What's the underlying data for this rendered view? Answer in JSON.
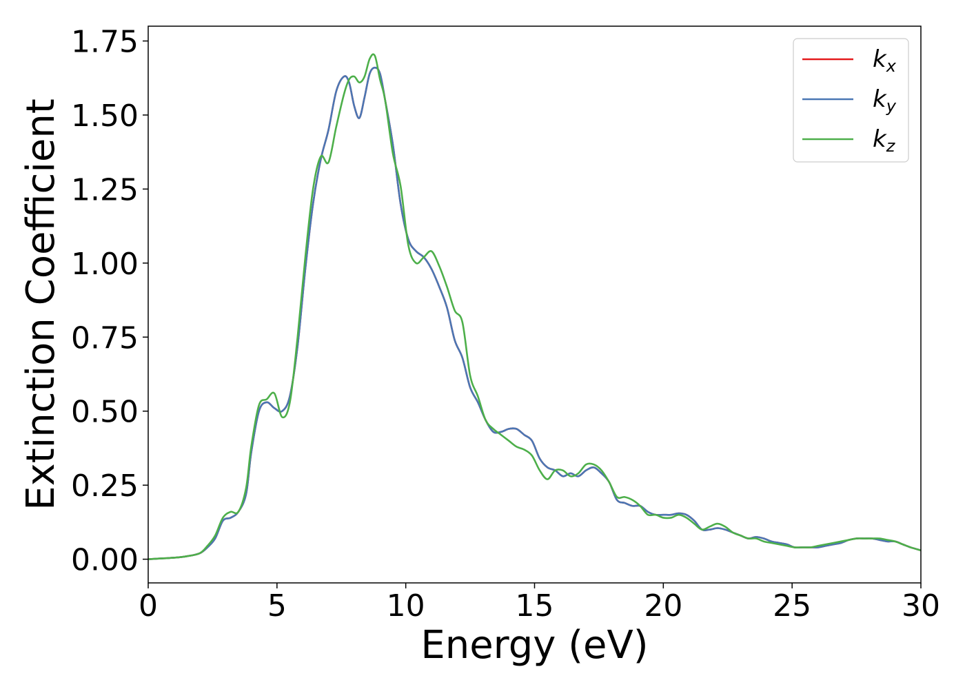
{
  "chart_data": {
    "type": "line",
    "xlabel": "Energy (eV)",
    "ylabel": "Extinction Coefficient",
    "xlim": [
      0,
      30
    ],
    "ylim": [
      -0.08,
      1.8
    ],
    "xticks": [
      0,
      5,
      10,
      15,
      20,
      25,
      30
    ],
    "xtick_labels": [
      "0",
      "5",
      "10",
      "15",
      "20",
      "25",
      "30"
    ],
    "yticks": [
      0.0,
      0.25,
      0.5,
      0.75,
      1.0,
      1.25,
      1.5,
      1.75
    ],
    "ytick_labels": [
      "0.00",
      "0.25",
      "0.50",
      "0.75",
      "1.00",
      "1.25",
      "1.50",
      "1.75"
    ],
    "grid": false,
    "legend_position": "top-right",
    "series": [
      {
        "name": "k_x",
        "label_base": "k",
        "label_sub": "x",
        "color": "#e41a1c",
        "x": [
          0,
          1,
          1.5,
          2,
          2.3,
          2.6,
          2.9,
          3.2,
          3.5,
          3.8,
          4.0,
          4.3,
          4.6,
          4.9,
          5.2,
          5.5,
          5.8,
          6.1,
          6.4,
          6.7,
          7.0,
          7.3,
          7.6,
          7.8,
          8.0,
          8.2,
          8.4,
          8.6,
          8.8,
          9.0,
          9.2,
          9.5,
          9.8,
          10.1,
          10.4,
          10.7,
          11.0,
          11.3,
          11.6,
          11.9,
          12.2,
          12.5,
          12.8,
          13.1,
          13.4,
          13.7,
          14.0,
          14.3,
          14.6,
          14.9,
          15.2,
          15.5,
          15.8,
          16.1,
          16.4,
          16.7,
          17.0,
          17.3,
          17.6,
          17.9,
          18.2,
          18.5,
          18.8,
          19.1,
          19.4,
          19.7,
          20.0,
          20.3,
          20.6,
          20.9,
          21.2,
          21.5,
          21.8,
          22.1,
          22.4,
          22.7,
          23.0,
          23.3,
          23.6,
          23.9,
          24.2,
          24.5,
          24.8,
          25.1,
          25.4,
          25.7,
          26.0,
          26.3,
          26.6,
          26.9,
          27.2,
          27.5,
          27.8,
          28.1,
          28.4,
          28.7,
          29.0,
          29.3,
          29.6,
          30.0
        ],
        "values": [
          0.0,
          0.005,
          0.01,
          0.02,
          0.04,
          0.07,
          0.13,
          0.14,
          0.16,
          0.22,
          0.36,
          0.5,
          0.53,
          0.51,
          0.5,
          0.55,
          0.72,
          0.98,
          1.2,
          1.35,
          1.45,
          1.58,
          1.63,
          1.61,
          1.53,
          1.49,
          1.56,
          1.64,
          1.66,
          1.64,
          1.55,
          1.4,
          1.2,
          1.08,
          1.04,
          1.02,
          0.98,
          0.92,
          0.85,
          0.74,
          0.68,
          0.58,
          0.53,
          0.47,
          0.43,
          0.43,
          0.44,
          0.44,
          0.42,
          0.4,
          0.34,
          0.31,
          0.3,
          0.28,
          0.29,
          0.28,
          0.3,
          0.31,
          0.29,
          0.26,
          0.2,
          0.19,
          0.18,
          0.18,
          0.16,
          0.15,
          0.15,
          0.15,
          0.155,
          0.15,
          0.13,
          0.1,
          0.1,
          0.105,
          0.1,
          0.09,
          0.08,
          0.07,
          0.075,
          0.07,
          0.06,
          0.055,
          0.05,
          0.04,
          0.04,
          0.04,
          0.04,
          0.045,
          0.05,
          0.055,
          0.065,
          0.07,
          0.07,
          0.07,
          0.065,
          0.06,
          0.06,
          0.05,
          0.04,
          0.03
        ]
      },
      {
        "name": "k_y",
        "label_base": "k",
        "label_sub": "y",
        "color": "#4a77b4",
        "x": [
          0,
          1,
          1.5,
          2,
          2.3,
          2.6,
          2.9,
          3.2,
          3.5,
          3.8,
          4.0,
          4.3,
          4.6,
          4.9,
          5.2,
          5.5,
          5.8,
          6.1,
          6.4,
          6.7,
          7.0,
          7.3,
          7.6,
          7.8,
          8.0,
          8.2,
          8.4,
          8.6,
          8.8,
          9.0,
          9.2,
          9.5,
          9.8,
          10.1,
          10.4,
          10.7,
          11.0,
          11.3,
          11.6,
          11.9,
          12.2,
          12.5,
          12.8,
          13.1,
          13.4,
          13.7,
          14.0,
          14.3,
          14.6,
          14.9,
          15.2,
          15.5,
          15.8,
          16.1,
          16.4,
          16.7,
          17.0,
          17.3,
          17.6,
          17.9,
          18.2,
          18.5,
          18.8,
          19.1,
          19.4,
          19.7,
          20.0,
          20.3,
          20.6,
          20.9,
          21.2,
          21.5,
          21.8,
          22.1,
          22.4,
          22.7,
          23.0,
          23.3,
          23.6,
          23.9,
          24.2,
          24.5,
          24.8,
          25.1,
          25.4,
          25.7,
          26.0,
          26.3,
          26.6,
          26.9,
          27.2,
          27.5,
          27.8,
          28.1,
          28.4,
          28.7,
          29.0,
          29.3,
          29.6,
          30.0
        ],
        "values": [
          0.0,
          0.005,
          0.01,
          0.02,
          0.04,
          0.07,
          0.13,
          0.14,
          0.16,
          0.22,
          0.36,
          0.5,
          0.53,
          0.51,
          0.5,
          0.55,
          0.72,
          0.98,
          1.2,
          1.35,
          1.45,
          1.58,
          1.63,
          1.61,
          1.53,
          1.49,
          1.56,
          1.64,
          1.66,
          1.64,
          1.55,
          1.4,
          1.2,
          1.08,
          1.04,
          1.02,
          0.98,
          0.92,
          0.85,
          0.74,
          0.68,
          0.58,
          0.53,
          0.47,
          0.43,
          0.43,
          0.44,
          0.44,
          0.42,
          0.4,
          0.34,
          0.31,
          0.3,
          0.28,
          0.29,
          0.28,
          0.3,
          0.31,
          0.29,
          0.26,
          0.2,
          0.19,
          0.18,
          0.18,
          0.16,
          0.15,
          0.15,
          0.15,
          0.155,
          0.15,
          0.13,
          0.1,
          0.1,
          0.105,
          0.1,
          0.09,
          0.08,
          0.07,
          0.075,
          0.07,
          0.06,
          0.055,
          0.05,
          0.04,
          0.04,
          0.04,
          0.04,
          0.045,
          0.05,
          0.055,
          0.065,
          0.07,
          0.07,
          0.07,
          0.065,
          0.06,
          0.06,
          0.05,
          0.04,
          0.03
        ]
      },
      {
        "name": "k_z",
        "label_base": "k",
        "label_sub": "z",
        "color": "#4daf4a",
        "x": [
          0,
          1,
          1.5,
          2,
          2.3,
          2.6,
          2.9,
          3.2,
          3.5,
          3.8,
          4.0,
          4.3,
          4.6,
          4.9,
          5.2,
          5.5,
          5.8,
          6.1,
          6.4,
          6.7,
          7.0,
          7.3,
          7.6,
          7.8,
          8.0,
          8.2,
          8.4,
          8.6,
          8.8,
          9.0,
          9.2,
          9.5,
          9.8,
          10.1,
          10.4,
          10.7,
          11.0,
          11.3,
          11.6,
          11.9,
          12.2,
          12.5,
          12.8,
          13.1,
          13.4,
          13.7,
          14.0,
          14.3,
          14.6,
          14.9,
          15.2,
          15.5,
          15.8,
          16.1,
          16.4,
          16.7,
          17.0,
          17.3,
          17.6,
          17.9,
          18.2,
          18.5,
          18.8,
          19.1,
          19.4,
          19.7,
          20.0,
          20.3,
          20.6,
          20.9,
          21.2,
          21.5,
          21.8,
          22.1,
          22.4,
          22.7,
          23.0,
          23.3,
          23.6,
          23.9,
          24.2,
          24.5,
          24.8,
          25.1,
          25.4,
          25.7,
          26.0,
          26.3,
          26.6,
          26.9,
          27.2,
          27.5,
          27.8,
          28.1,
          28.4,
          28.7,
          29.0,
          29.3,
          29.6,
          30.0
        ],
        "values": [
          0.0,
          0.005,
          0.01,
          0.02,
          0.045,
          0.08,
          0.14,
          0.16,
          0.16,
          0.24,
          0.38,
          0.52,
          0.54,
          0.56,
          0.48,
          0.53,
          0.75,
          1.02,
          1.25,
          1.36,
          1.34,
          1.46,
          1.57,
          1.62,
          1.63,
          1.61,
          1.63,
          1.69,
          1.7,
          1.62,
          1.55,
          1.37,
          1.26,
          1.06,
          1.0,
          1.02,
          1.04,
          0.99,
          0.92,
          0.84,
          0.8,
          0.62,
          0.55,
          0.47,
          0.44,
          0.42,
          0.4,
          0.38,
          0.37,
          0.35,
          0.3,
          0.27,
          0.3,
          0.3,
          0.28,
          0.29,
          0.32,
          0.32,
          0.3,
          0.26,
          0.21,
          0.21,
          0.2,
          0.18,
          0.15,
          0.15,
          0.14,
          0.14,
          0.15,
          0.14,
          0.12,
          0.1,
          0.11,
          0.12,
          0.11,
          0.09,
          0.08,
          0.07,
          0.07,
          0.06,
          0.055,
          0.05,
          0.045,
          0.04,
          0.04,
          0.04,
          0.045,
          0.05,
          0.055,
          0.06,
          0.065,
          0.07,
          0.07,
          0.07,
          0.07,
          0.065,
          0.06,
          0.05,
          0.04,
          0.03
        ]
      }
    ]
  }
}
